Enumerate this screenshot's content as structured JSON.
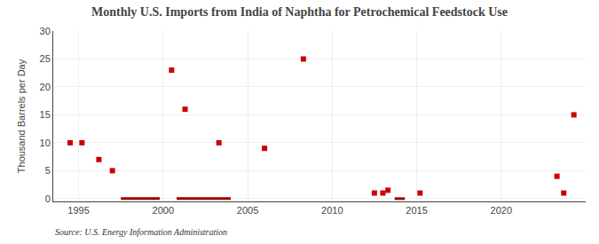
{
  "chart_data": {
    "type": "scatter",
    "title": "Monthly U.S. Imports from India of Naphtha for Petrochemical Feedstock Use",
    "ylabel": "Thousand Barrels per Day",
    "annotations": [
      "Source: U.S. Energy Information Administration"
    ],
    "xlim": [
      1993.5,
      2025.0
    ],
    "xticks": [
      1995,
      2000,
      2005,
      2010,
      2015,
      2020
    ],
    "ylim": [
      -0.5,
      30
    ],
    "yticks": [
      0,
      5,
      10,
      15,
      20,
      25,
      30
    ],
    "grid": true,
    "series": [
      {
        "type": "scatter",
        "marker": "square",
        "color": "#cc0000",
        "x": [
          1994.5,
          1995.2,
          1996.2,
          1997.0,
          2000.5,
          2001.3,
          2003.3,
          2006.0,
          2008.3,
          2012.5,
          2013.0,
          2013.3,
          2015.2,
          2023.3,
          2023.7,
          2024.3
        ],
        "values": [
          10.0,
          10.0,
          7.0,
          5.0,
          23.0,
          16.0,
          10.0,
          9.0,
          25.0,
          1.0,
          1.0,
          1.5,
          1.0,
          4.0,
          1.0,
          15.0
        ]
      },
      {
        "type": "line",
        "color": "#990000",
        "x": [
          1997.5,
          1999.8,
          null,
          2000.8,
          2004.0,
          null,
          2013.7,
          2014.3
        ],
        "values": [
          0,
          0,
          null,
          0,
          0,
          null,
          0,
          0
        ]
      }
    ]
  }
}
